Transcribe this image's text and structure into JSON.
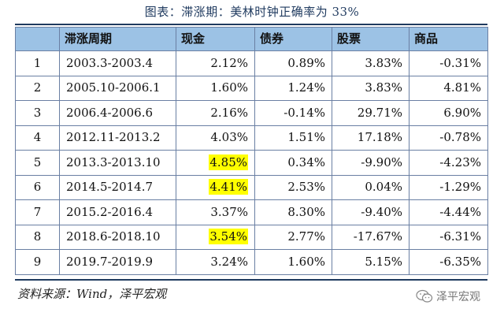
{
  "title": "图表：滞涨期：美林时钟正确率为 33%",
  "table": {
    "headers": [
      "",
      "滞涨周期",
      "现金",
      "债券",
      "股票",
      "商品"
    ],
    "rows": [
      {
        "idx": "1",
        "period": "2003.3-2003.4",
        "cash": "2.12%",
        "bonds": "0.89%",
        "stocks": "3.83%",
        "commodities": "-0.31%",
        "cash_highlight": false
      },
      {
        "idx": "2",
        "period": "2005.10-2006.1",
        "cash": "1.60%",
        "bonds": "1.24%",
        "stocks": "3.83%",
        "commodities": "4.81%",
        "cash_highlight": false
      },
      {
        "idx": "3",
        "period": "2006.4-2006.6",
        "cash": "2.16%",
        "bonds": "-0.14%",
        "stocks": "29.71%",
        "commodities": "6.90%",
        "cash_highlight": false
      },
      {
        "idx": "4",
        "period": "2012.11-2013.2",
        "cash": "4.03%",
        "bonds": "1.51%",
        "stocks": "17.18%",
        "commodities": "-0.78%",
        "cash_highlight": false
      },
      {
        "idx": "5",
        "period": "2013.3-2013.10",
        "cash": "4.85%",
        "bonds": "0.34%",
        "stocks": "-9.90%",
        "commodities": "-4.23%",
        "cash_highlight": true
      },
      {
        "idx": "6",
        "period": "2014.5-2014.7",
        "cash": "4.41%",
        "bonds": "2.53%",
        "stocks": "0.04%",
        "commodities": "-1.29%",
        "cash_highlight": true
      },
      {
        "idx": "7",
        "period": "2015.2-2016.4",
        "cash": "3.37%",
        "bonds": "8.30%",
        "stocks": "-9.40%",
        "commodities": "-4.44%",
        "cash_highlight": false
      },
      {
        "idx": "8",
        "period": "2018.6-2018.10",
        "cash": "3.54%",
        "bonds": "2.77%",
        "stocks": "-17.67%",
        "commodities": "-6.31%",
        "cash_highlight": true
      },
      {
        "idx": "9",
        "period": "2019.7-2019.9",
        "cash": "3.24%",
        "bonds": "1.60%",
        "stocks": "5.15%",
        "commodities": "-6.35%",
        "cash_highlight": false
      }
    ]
  },
  "source": "资料来源：Wind，泽平宏观",
  "watermark": "泽平宏观",
  "colors": {
    "header_bg": "#9cc2e5",
    "highlight": "#ffff00",
    "rule": "#1f3a5f"
  }
}
